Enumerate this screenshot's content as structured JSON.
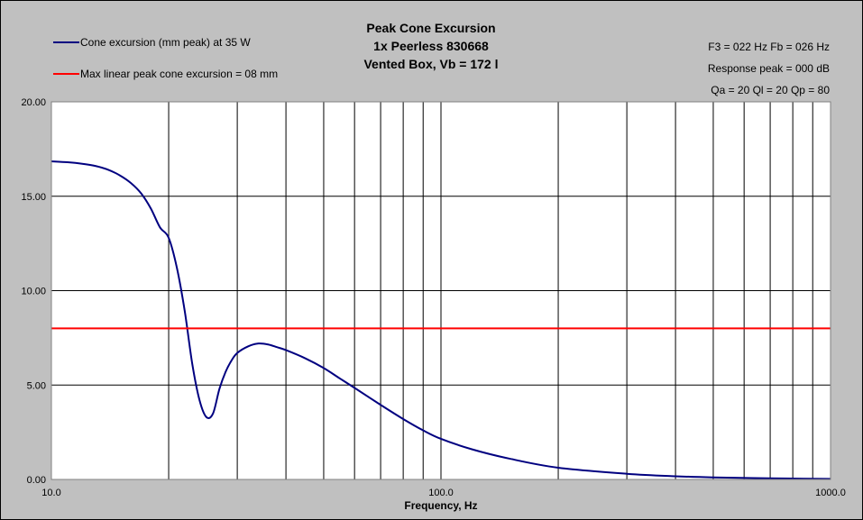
{
  "chart_data": {
    "type": "line",
    "title": [
      "Peak Cone Excursion",
      "1x Peerless 830668",
      "Vented Box, Vb = 172 l"
    ],
    "xlabel": "Frequency, Hz",
    "ylabel": "",
    "xscale": "log",
    "xlim": [
      10,
      1000
    ],
    "ylim": [
      0,
      20
    ],
    "x_ticks": [
      "10.0",
      "100.0",
      "1000.0"
    ],
    "y_ticks": [
      "0.00",
      "5.00",
      "10.00",
      "15.00",
      "20.00"
    ],
    "grid": true,
    "legend_position": "top-left",
    "info_lines": [
      "F3 = 022 Hz  Fb = 026 Hz",
      "Response peak = 000 dB",
      "Qa = 20  Ql = 20  Qp = 80"
    ],
    "series": [
      {
        "name": "Cone excursion (mm peak) at 35 W",
        "color": "#000080",
        "x": [
          10,
          11,
          12,
          13,
          14,
          15,
          16,
          17,
          18,
          19,
          20,
          21,
          22,
          23,
          24,
          25,
          26,
          27,
          28,
          29,
          30,
          32,
          34,
          36,
          38,
          40,
          45,
          50,
          55,
          60,
          70,
          80,
          90,
          100,
          120,
          150,
          200,
          300,
          400,
          500,
          700,
          1000
        ],
        "values": [
          16.85,
          16.8,
          16.72,
          16.6,
          16.4,
          16.1,
          15.7,
          15.15,
          14.35,
          13.35,
          12.8,
          11.2,
          8.9,
          6.1,
          4.2,
          3.3,
          3.5,
          4.8,
          5.7,
          6.3,
          6.7,
          7.05,
          7.2,
          7.15,
          7.0,
          6.85,
          6.4,
          5.9,
          5.35,
          4.85,
          3.95,
          3.2,
          2.6,
          2.15,
          1.6,
          1.1,
          0.62,
          0.3,
          0.17,
          0.11,
          0.06,
          0.03
        ]
      },
      {
        "name": "Max linear peak cone excursion = 08 mm",
        "color": "#ff0000",
        "x": [
          10,
          1000
        ],
        "values": [
          8,
          8
        ]
      }
    ]
  }
}
